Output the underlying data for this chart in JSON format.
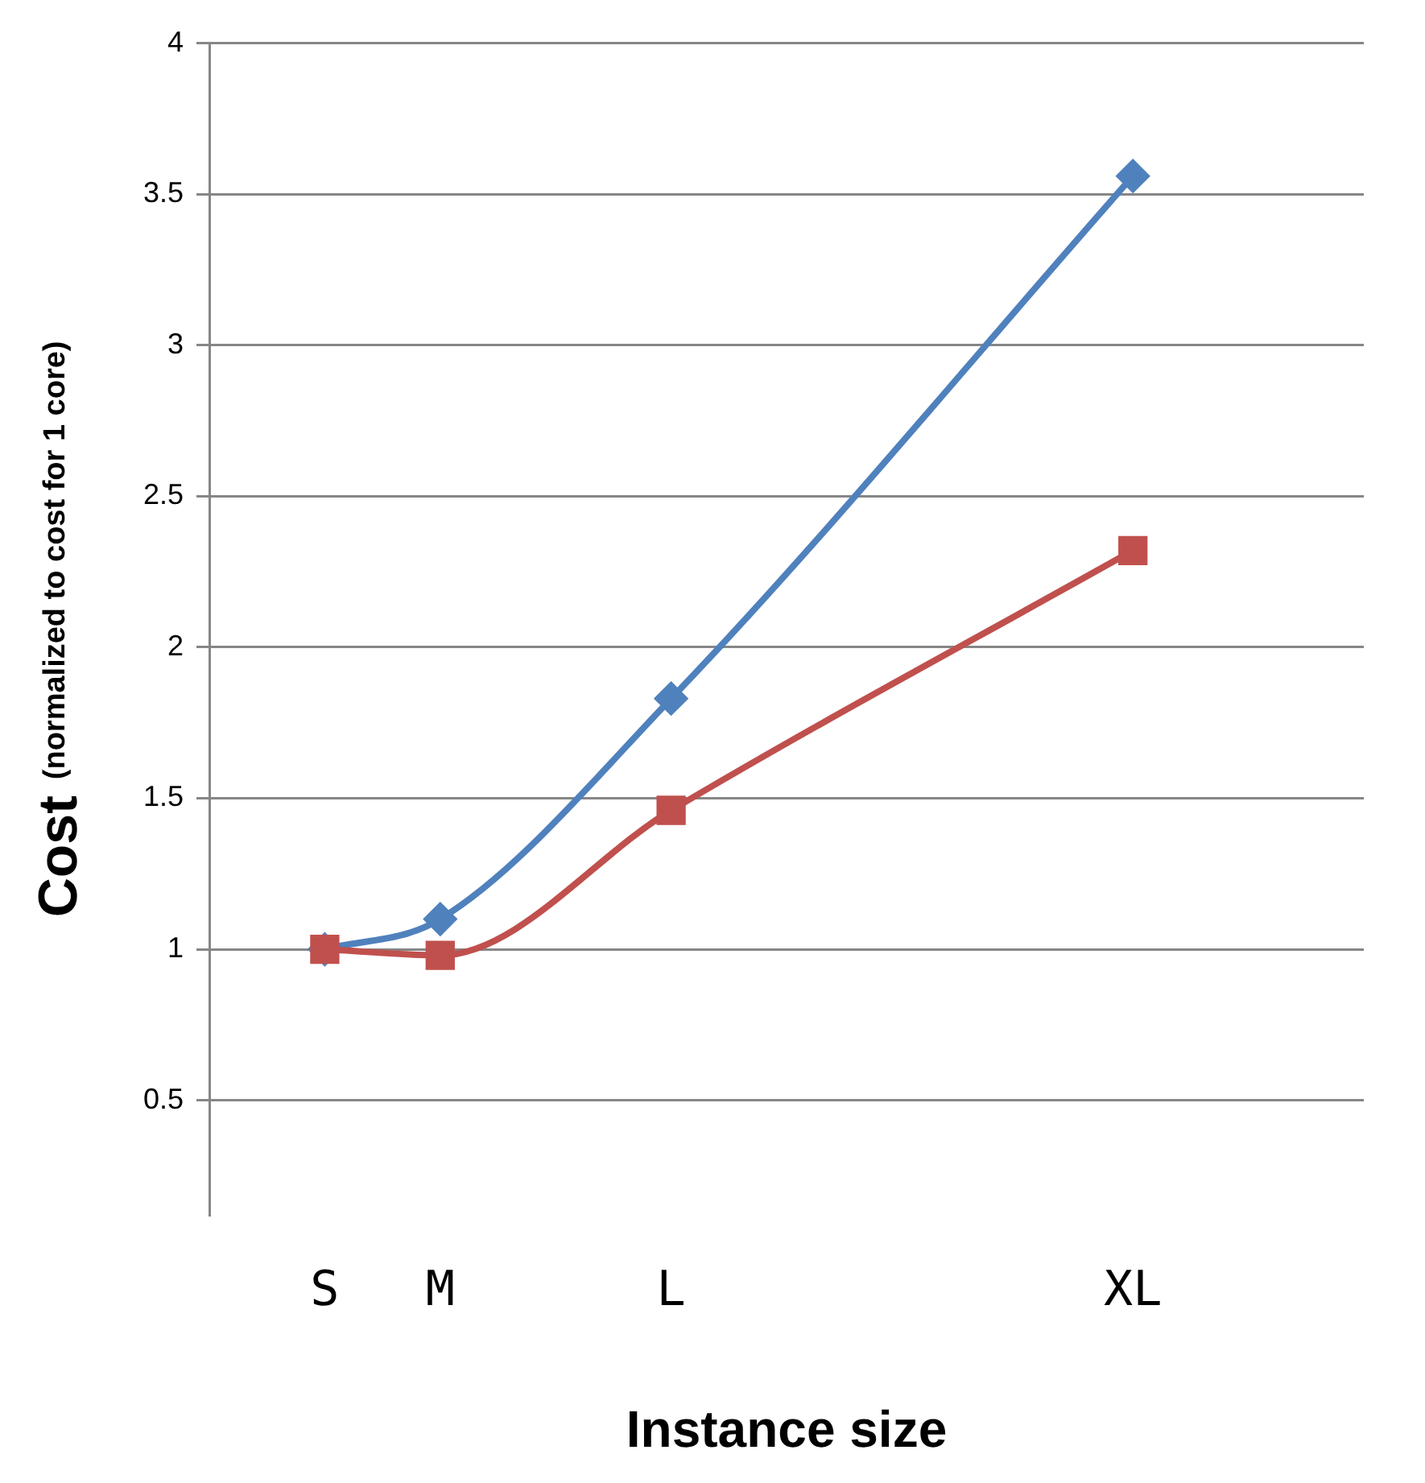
{
  "chart_data": {
    "type": "line",
    "xlabel": "Instance size",
    "ylabel": "Cost (normalized to cost for 1 core)",
    "categories": [
      null,
      "S",
      "M",
      null,
      "L",
      null,
      null,
      null,
      "XL",
      null,
      null
    ],
    "ylim": [
      0.12,
      4
    ],
    "yticks": [
      0.5,
      1,
      1.5,
      2,
      2.5,
      3,
      3.5,
      4
    ],
    "grid": "y",
    "legend": false,
    "series": [
      {
        "color": "#4f81bd",
        "marker": "diamond",
        "values": [
          null,
          1,
          1.1,
          null,
          1.83,
          null,
          null,
          null,
          3.56,
          null,
          null
        ]
      },
      {
        "color": "#c0504d",
        "marker": "square",
        "values": [
          null,
          1,
          0.98,
          null,
          1.46,
          null,
          null,
          null,
          2.32,
          null,
          null
        ]
      }
    ]
  }
}
